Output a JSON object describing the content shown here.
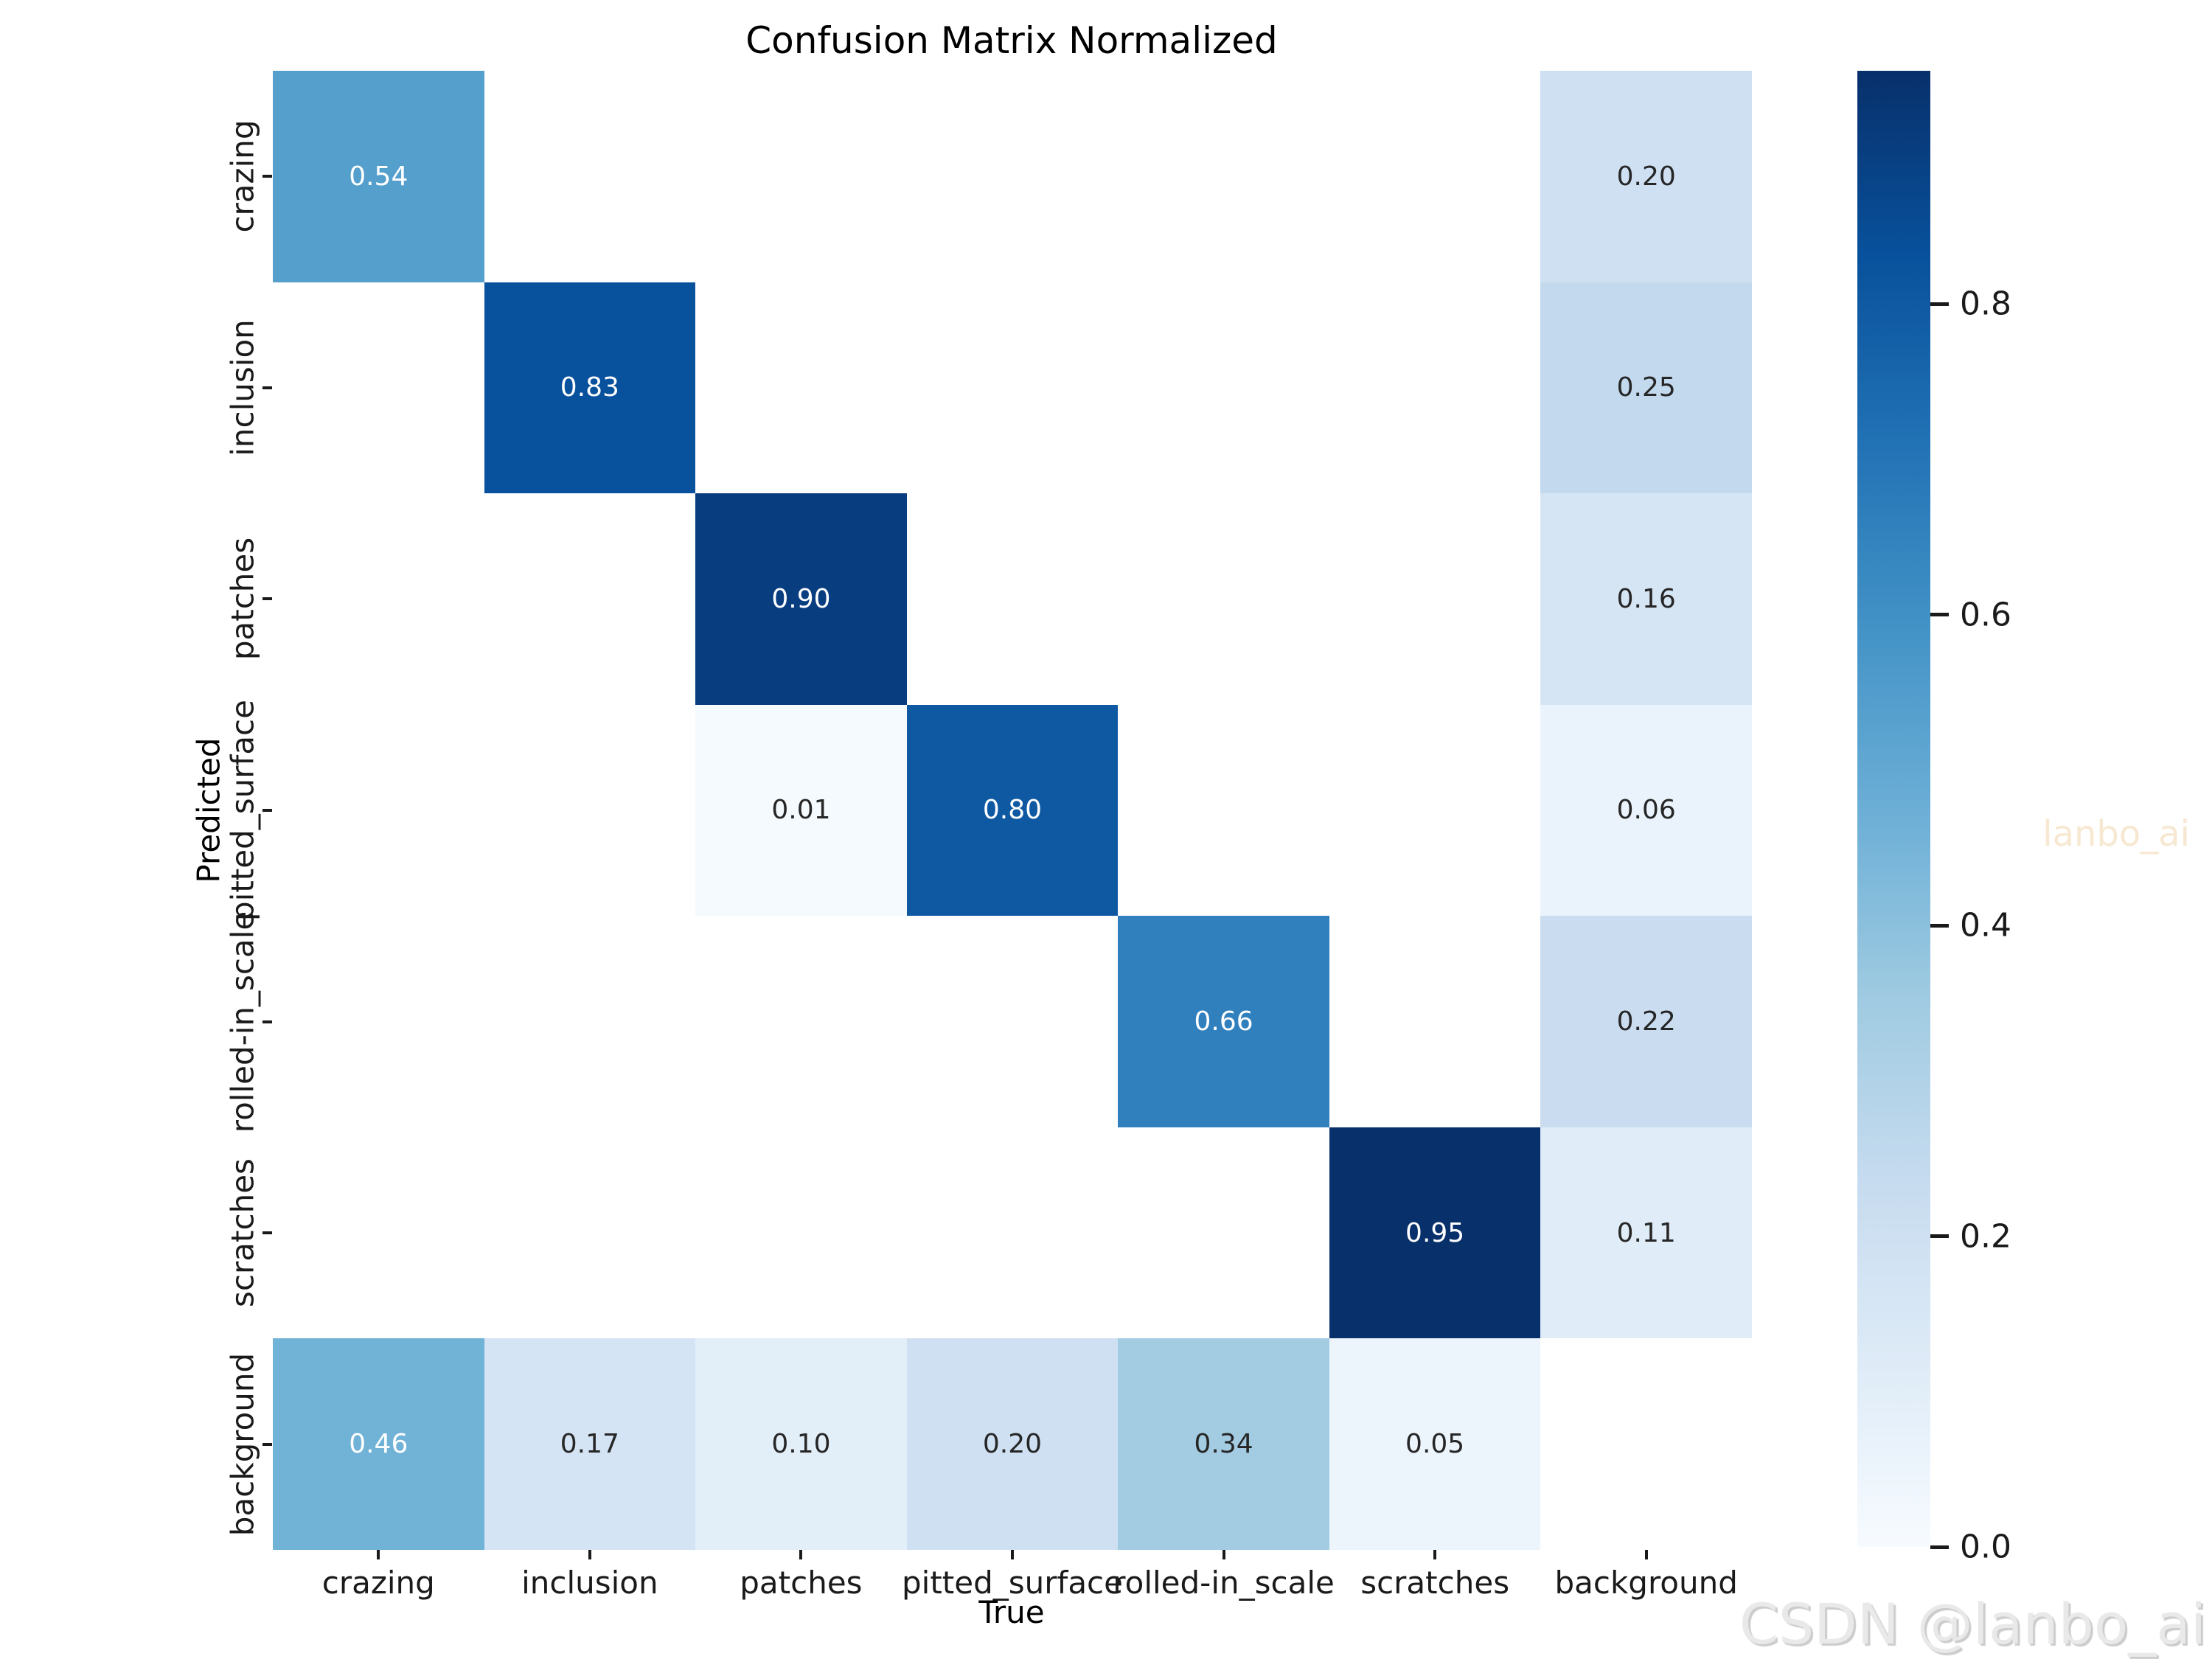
{
  "chart_data": {
    "type": "heatmap",
    "title": "Confusion Matrix Normalized",
    "xlabel": "True",
    "ylabel": "Predicted",
    "x_categories": [
      "crazing",
      "inclusion",
      "patches",
      "pitted_surface",
      "rolled-in_scale",
      "scratches",
      "background"
    ],
    "y_categories": [
      "crazing",
      "inclusion",
      "patches",
      "pitted_surface",
      "rolled-in_scale",
      "scratches",
      "background"
    ],
    "matrix": [
      [
        0.54,
        null,
        null,
        null,
        null,
        null,
        0.2
      ],
      [
        null,
        0.83,
        null,
        null,
        null,
        null,
        0.25
      ],
      [
        null,
        null,
        0.9,
        null,
        null,
        null,
        0.16
      ],
      [
        null,
        null,
        0.01,
        0.8,
        null,
        null,
        0.06
      ],
      [
        null,
        null,
        null,
        null,
        0.66,
        null,
        0.22
      ],
      [
        null,
        null,
        null,
        null,
        null,
        0.95,
        0.11
      ],
      [
        0.46,
        0.17,
        0.1,
        0.2,
        0.34,
        0.05,
        null
      ]
    ],
    "vmin": 0.0,
    "vmax": 0.95,
    "colormap": "Blues",
    "colorbar_ticks": [
      0.0,
      0.2,
      0.4,
      0.6,
      0.8
    ],
    "value_format": "two_decimals",
    "legend_position": "right-colorbar",
    "grid": false
  },
  "watermarks": {
    "plot_watermark": "lanbo_ai",
    "csdn_watermark": "CSDN @lanbo_ai"
  },
  "colors": {
    "background": "#ffffff",
    "empty_cell": "#ffffff",
    "colormap_stops": [
      "#f7fbff",
      "#deebf7",
      "#c6dbef",
      "#9ecae1",
      "#6baed6",
      "#4292c6",
      "#2171b5",
      "#08519c",
      "#08306b"
    ],
    "annotation_dark": "#262626",
    "annotation_light": "#ffffff",
    "tick_text": "#1a1a1a",
    "plot_watermark_color": "#f7e8d1",
    "csdn_watermark_color": "#e9e9e9"
  }
}
